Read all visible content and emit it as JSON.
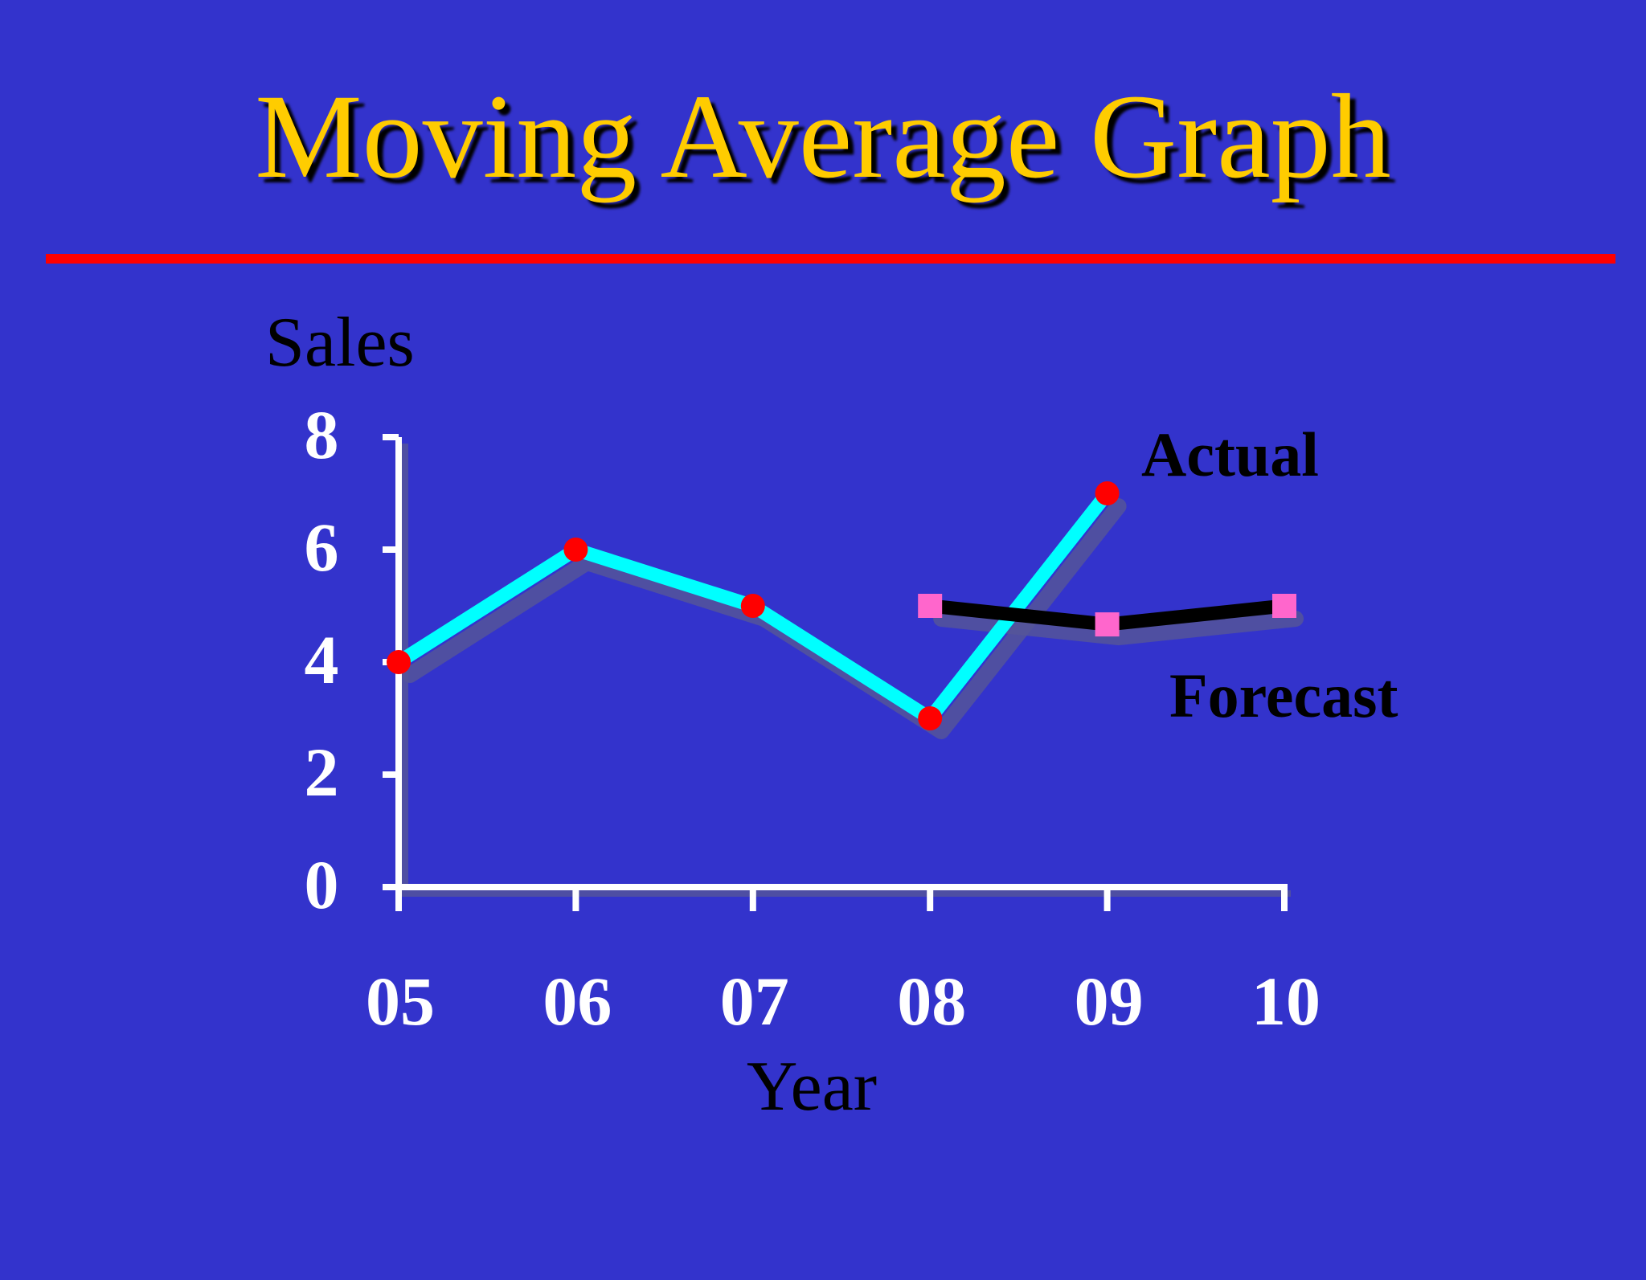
{
  "slide": {
    "title": "Moving Average Graph",
    "colors": {
      "background": "#3333cc",
      "title": "#ffcc00",
      "rule": "#ff0000",
      "axis": "#ffffff",
      "actual_line": "#00ffff",
      "actual_marker": "#ff0000",
      "forecast_line": "#000000",
      "forecast_marker": "#ff66cc",
      "shadow": "#555599",
      "label_dark": "#000000"
    }
  },
  "chart_data": {
    "type": "line",
    "ylabel": "Sales",
    "xlabel": "Year",
    "categories": [
      "05",
      "06",
      "07",
      "08",
      "09",
      "10"
    ],
    "yticks": [
      "0",
      "2",
      "4",
      "6",
      "8"
    ],
    "ylim": [
      0,
      8
    ],
    "grid": false,
    "series": [
      {
        "name": "Actual",
        "x": [
          "05",
          "06",
          "07",
          "08",
          "09"
        ],
        "values": [
          4,
          6,
          5,
          3,
          7
        ],
        "line_color": "#00ffff",
        "marker": "circle",
        "marker_color": "#ff0000"
      },
      {
        "name": "Forecast",
        "x": [
          "08",
          "09",
          "10"
        ],
        "values": [
          5,
          4.67,
          5
        ],
        "line_color": "#000000",
        "marker": "square",
        "marker_color": "#ff66cc"
      }
    ]
  }
}
